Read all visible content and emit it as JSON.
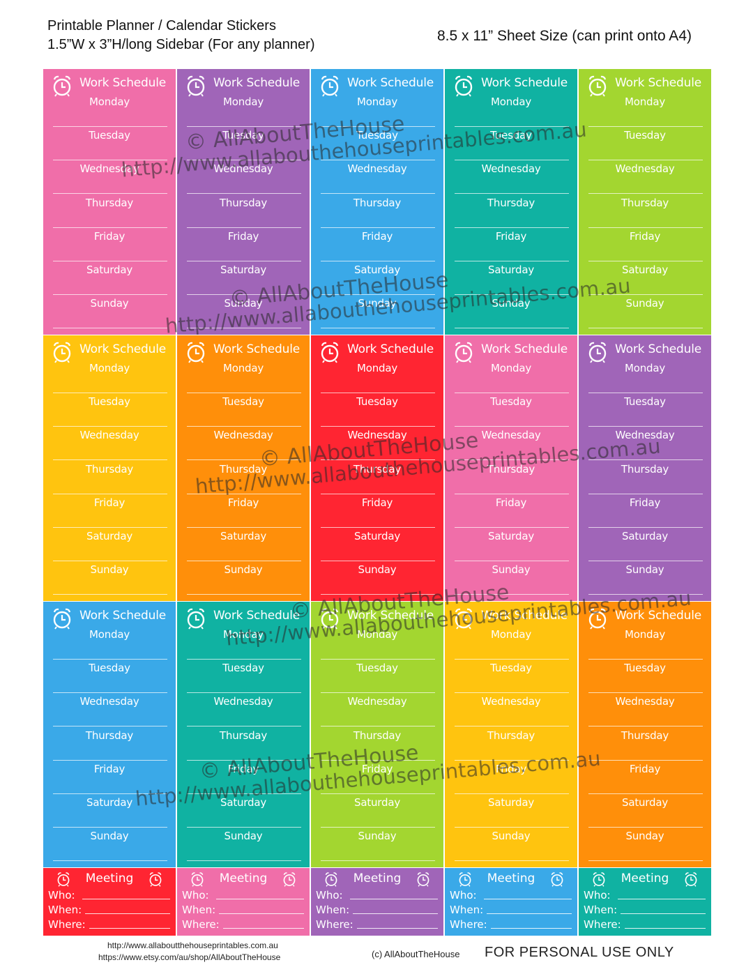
{
  "header": {
    "title_line1": "Printable Planner / Calendar Stickers",
    "title_line2": "1.5”W x 3”H/long Sidebar (For any planner)",
    "size_info": "8.5 x 11” Sheet Size (can print onto A4)"
  },
  "work_schedule": {
    "title": "Work Schedule",
    "days": [
      "Monday",
      "Tuesday",
      "Wednesday",
      "Thursday",
      "Friday",
      "Saturday",
      "Sunday"
    ],
    "clock_icon": "alarm-clock-icon"
  },
  "sticker_colors": [
    "#f06ea9",
    "#a065b8",
    "#3aa9e8",
    "#10b2a2",
    "#a3d630",
    "#ffc40f",
    "#ff8f0a",
    "#ff2532",
    "#f06ea9",
    "#a065b8",
    "#3aa9e8",
    "#10b2a2",
    "#a3d630",
    "#ffc40f",
    "#ff8f0a"
  ],
  "meeting": {
    "title": "Meeting",
    "fields": [
      "Who:",
      "When:",
      "Where:"
    ],
    "colors": [
      "#ff2532",
      "#f06ea9",
      "#a065b8",
      "#3aa9e8",
      "#10b2a2"
    ]
  },
  "watermark": {
    "line1": "© AllAboutTheHouse",
    "line2": "http://www.allabouthehouseprintables.com.au"
  },
  "footer": {
    "url1": "http://www.allaboutthehouseprintables.com.au",
    "url2": "https://www.etsy.com/au/shop/AllAboutTheHouse",
    "copyright": "(c) AllAboutTheHouse",
    "personal_use": "FOR PERSONAL USE ONLY"
  }
}
